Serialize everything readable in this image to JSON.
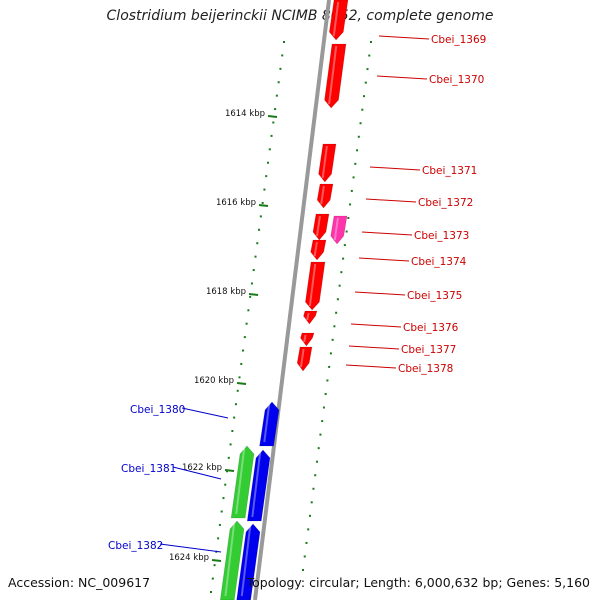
{
  "title": "Clostridium beijerinckii NCIMB 8052, complete genome",
  "footer": {
    "accession": "Accession: NC_009617",
    "info": "Topology: circular; Length: 6,000,632 bp; Genes: 5,160"
  },
  "colors": {
    "backbone": "#999999",
    "tick": "#1a7a1a",
    "gene_red": "#ff0000",
    "gene_magenta": "#ff33aa",
    "gene_blue": "#0000ee",
    "gene_green": "#33cc33",
    "label_red": "#cc0000",
    "label_blue": "#0000cc"
  },
  "kbp_markers": [
    "1614 kbp",
    "1616 kbp",
    "1618 kbp",
    "1620 kbp",
    "1622 kbp",
    "1624 kbp"
  ],
  "genes_right": [
    "Cbei_1369",
    "Cbei_1370",
    "Cbei_1371",
    "Cbei_1372",
    "Cbei_1373",
    "Cbei_1374",
    "Cbei_1375",
    "Cbei_1376",
    "Cbei_1377",
    "Cbei_1378"
  ],
  "genes_left": [
    "Cbei_1380",
    "Cbei_1381",
    "Cbei_1382"
  ]
}
